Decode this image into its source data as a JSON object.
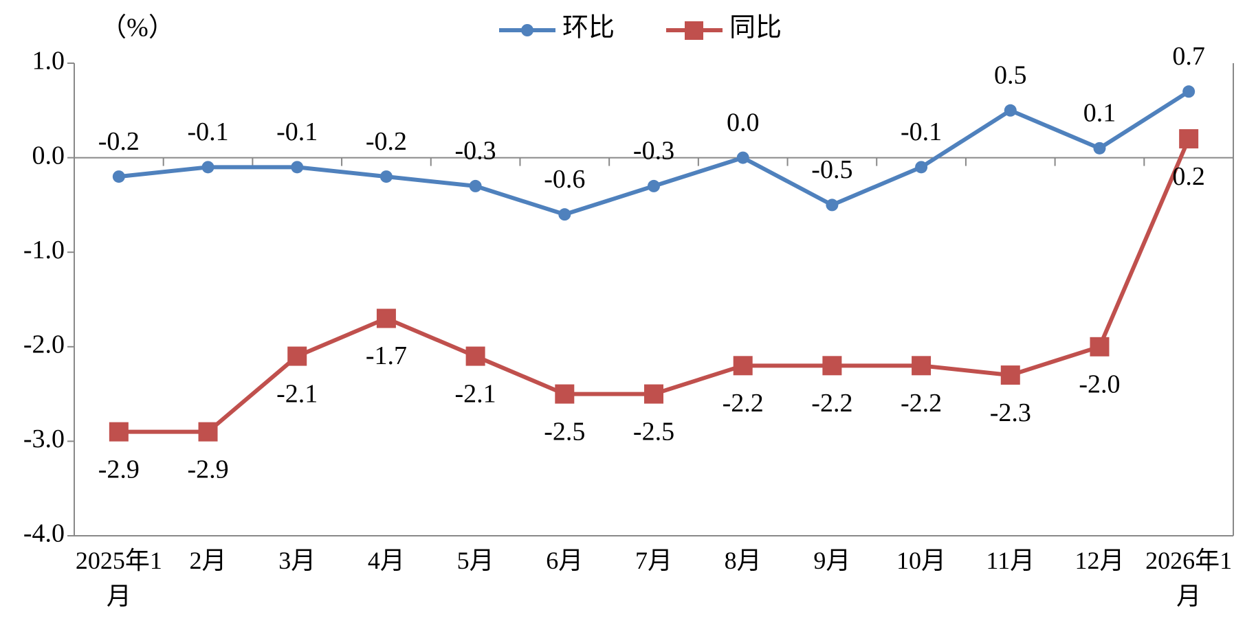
{
  "chart_data": {
    "type": "line",
    "y_unit": "（%）",
    "categories": [
      "2025年1月",
      "2月",
      "3月",
      "4月",
      "5月",
      "6月",
      "7月",
      "8月",
      "9月",
      "10月",
      "11月",
      "12月",
      "2026年1月"
    ],
    "series": [
      {
        "name": "环比",
        "color": "#4f81bd",
        "marker": "circle",
        "label_position": "above",
        "values": [
          -0.2,
          -0.1,
          -0.1,
          -0.2,
          -0.3,
          -0.6,
          -0.3,
          0.0,
          -0.5,
          -0.1,
          0.5,
          0.1,
          0.7
        ],
        "value_labels": [
          "-0.2",
          "-0.1",
          "-0.1",
          "-0.2",
          "-0.3",
          "-0.6",
          "-0.3",
          "0.0",
          "-0.5",
          "-0.1",
          "0.5",
          "0.1",
          "0.7"
        ]
      },
      {
        "name": "同比",
        "color": "#c0504d",
        "marker": "square",
        "label_position": "below",
        "values": [
          -2.9,
          -2.9,
          -2.1,
          -1.7,
          -2.1,
          -2.5,
          -2.5,
          -2.2,
          -2.2,
          -2.2,
          -2.3,
          -2.0,
          0.2
        ],
        "value_labels": [
          "-2.9",
          "-2.9",
          "-2.1",
          "-1.7",
          "-2.1",
          "-2.5",
          "-2.5",
          "-2.2",
          "-2.2",
          "-2.2",
          "-2.3",
          "-2.0",
          "0.2"
        ]
      }
    ],
    "ylim": [
      -4.0,
      1.0
    ],
    "yticks": [
      {
        "value": 1.0,
        "label": "1.0"
      },
      {
        "value": 0.0,
        "label": "0.0"
      },
      {
        "value": -1.0,
        "label": "-1.0"
      },
      {
        "value": -2.0,
        "label": "-2.0"
      },
      {
        "value": -3.0,
        "label": "-3.0"
      },
      {
        "value": -4.0,
        "label": "-4.0"
      }
    ],
    "grid": false
  }
}
